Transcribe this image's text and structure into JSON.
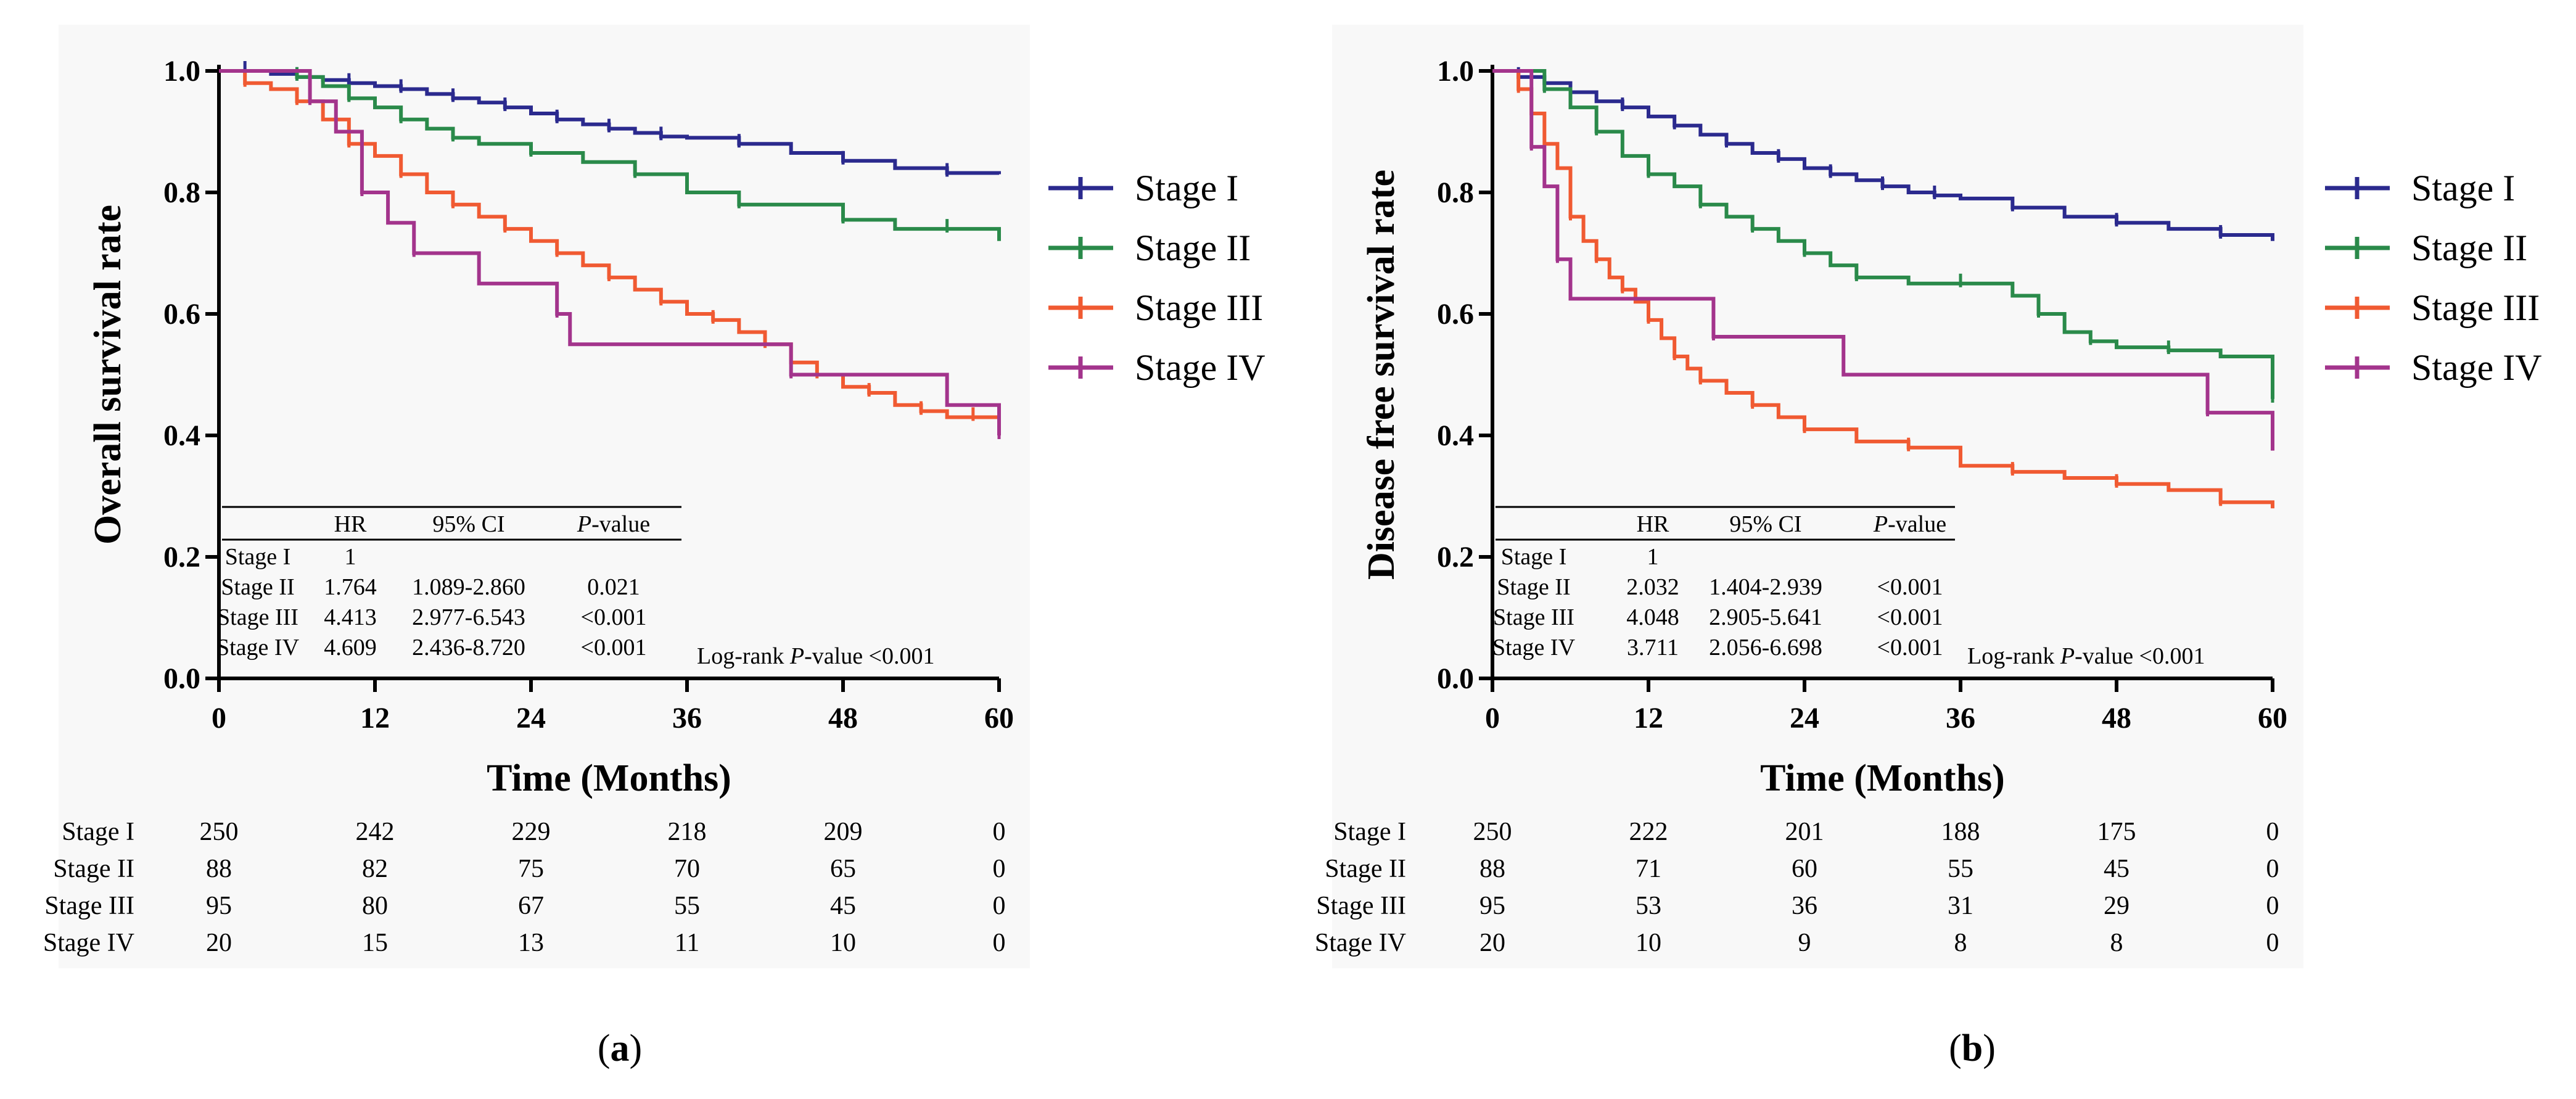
{
  "panels": [
    {
      "panel_label": "a",
      "chart_data": {
        "type": "line",
        "subtype": "kaplan-meier",
        "title": "",
        "xlabel": "Time (Months)",
        "ylabel": "Overall survival rate",
        "xlim": [
          0,
          60
        ],
        "ylim": [
          0,
          1
        ],
        "xticks": [
          0,
          12,
          24,
          36,
          48,
          60
        ],
        "xtick_labels": [
          "0",
          "12",
          "24",
          "36",
          "48",
          "60"
        ],
        "yticks": [
          0,
          0.2,
          0.4,
          0.6,
          0.8,
          1.0
        ],
        "ytick_labels": [
          "0.0",
          "0.2",
          "0.4",
          "0.6",
          "0.8",
          "1.0"
        ],
        "legend_position": "right",
        "series": [
          {
            "name": "Stage I",
            "color": "#2b2a8e",
            "x": [
              0,
              2,
              4,
              6,
              8,
              10,
              12,
              14,
              16,
              18,
              20,
              22,
              24,
              26,
              28,
              30,
              32,
              34,
              36,
              40,
              44,
              48,
              52,
              56,
              60
            ],
            "y": [
              1.0,
              1.0,
              0.995,
              0.99,
              0.985,
              0.98,
              0.975,
              0.97,
              0.962,
              0.955,
              0.948,
              0.94,
              0.93,
              0.92,
              0.912,
              0.905,
              0.898,
              0.892,
              0.89,
              0.88,
              0.865,
              0.852,
              0.84,
              0.832,
              0.83
            ]
          },
          {
            "name": "Stage II",
            "color": "#2a8a4a",
            "x": [
              0,
              6,
              8,
              10,
              12,
              14,
              16,
              18,
              20,
              24,
              28,
              32,
              36,
              40,
              44,
              48,
              52,
              56,
              60
            ],
            "y": [
              1.0,
              0.99,
              0.975,
              0.955,
              0.94,
              0.92,
              0.905,
              0.89,
              0.88,
              0.865,
              0.85,
              0.83,
              0.8,
              0.78,
              0.78,
              0.755,
              0.74,
              0.74,
              0.72
            ]
          },
          {
            "name": "Stage III",
            "color": "#f05a32",
            "x": [
              0,
              2,
              4,
              6,
              8,
              10,
              12,
              14,
              16,
              18,
              20,
              22,
              24,
              26,
              28,
              30,
              32,
              34,
              36,
              38,
              40,
              42,
              44,
              46,
              48,
              50,
              52,
              54,
              56,
              58,
              60
            ],
            "y": [
              1.0,
              0.98,
              0.97,
              0.95,
              0.92,
              0.88,
              0.86,
              0.83,
              0.8,
              0.78,
              0.76,
              0.74,
              0.72,
              0.7,
              0.68,
              0.66,
              0.64,
              0.62,
              0.6,
              0.59,
              0.57,
              0.55,
              0.52,
              0.5,
              0.48,
              0.47,
              0.45,
              0.44,
              0.43,
              0.43,
              0.41
            ]
          },
          {
            "name": "Stage IV",
            "color": "#a3348c",
            "x": [
              0,
              7,
              9,
              11,
              13,
              15,
              20,
              26,
              27,
              44,
              56,
              60
            ],
            "y": [
              1.0,
              0.95,
              0.9,
              0.8,
              0.75,
              0.7,
              0.65,
              0.6,
              0.55,
              0.5,
              0.45,
              0.4
            ]
          }
        ],
        "hr_table": {
          "headers": [
            "",
            "HR",
            "95% CI",
            "P-value"
          ],
          "rows": [
            [
              "Stage I",
              "1",
              "",
              ""
            ],
            [
              "Stage II",
              "1.764",
              "1.089-2.860",
              "0.021"
            ],
            [
              "Stage III",
              "4.413",
              "2.977-6.543",
              "<0.001"
            ],
            [
              "Stage IV",
              "4.609",
              "2.436-8.720",
              "<0.001"
            ]
          ],
          "logrank_prefix": "Log-rank ",
          "logrank_p": "P",
          "logrank_suffix": "-value <0.001"
        },
        "risk_table": {
          "rows": [
            {
              "label": "Stage I",
              "values": [
                "250",
                "242",
                "229",
                "218",
                "209",
                "0"
              ]
            },
            {
              "label": "Stage II",
              "values": [
                "88",
                "82",
                "75",
                "70",
                "65",
                "0"
              ]
            },
            {
              "label": "Stage III",
              "values": [
                "95",
                "80",
                "67",
                "55",
                "45",
                "0"
              ]
            },
            {
              "label": "Stage IV",
              "values": [
                "20",
                "15",
                "13",
                "11",
                "10",
                "0"
              ]
            }
          ]
        }
      }
    },
    {
      "panel_label": "b",
      "chart_data": {
        "type": "line",
        "subtype": "kaplan-meier",
        "title": "",
        "xlabel": "Time (Months)",
        "ylabel": "Disease free survival rate",
        "xlim": [
          0,
          60
        ],
        "ylim": [
          0,
          1
        ],
        "xticks": [
          0,
          12,
          24,
          36,
          48,
          60
        ],
        "xtick_labels": [
          "0",
          "12",
          "24",
          "36",
          "48",
          "60"
        ],
        "yticks": [
          0,
          0.2,
          0.4,
          0.6,
          0.8,
          1.0
        ],
        "ytick_labels": [
          "0.0",
          "0.2",
          "0.4",
          "0.6",
          "0.8",
          "1.0"
        ],
        "legend_position": "right",
        "series": [
          {
            "name": "Stage I",
            "color": "#2b2a8e",
            "x": [
              0,
              2,
              4,
              6,
              8,
              10,
              12,
              14,
              16,
              18,
              20,
              22,
              24,
              26,
              28,
              30,
              32,
              34,
              36,
              40,
              44,
              48,
              52,
              56,
              60
            ],
            "y": [
              1.0,
              0.99,
              0.98,
              0.965,
              0.95,
              0.94,
              0.925,
              0.91,
              0.895,
              0.88,
              0.865,
              0.855,
              0.84,
              0.83,
              0.82,
              0.81,
              0.8,
              0.795,
              0.79,
              0.775,
              0.76,
              0.75,
              0.74,
              0.73,
              0.72
            ]
          },
          {
            "name": "Stage II",
            "color": "#2a8a4a",
            "x": [
              0,
              4,
              6,
              8,
              10,
              12,
              14,
              16,
              18,
              20,
              22,
              24,
              26,
              28,
              32,
              36,
              40,
              42,
              44,
              46,
              48,
              52,
              56,
              60
            ],
            "y": [
              1.0,
              0.97,
              0.94,
              0.9,
              0.86,
              0.83,
              0.81,
              0.78,
              0.76,
              0.74,
              0.72,
              0.7,
              0.68,
              0.66,
              0.65,
              0.65,
              0.63,
              0.6,
              0.57,
              0.555,
              0.545,
              0.54,
              0.53,
              0.46
            ]
          },
          {
            "name": "Stage III",
            "color": "#f05a32",
            "x": [
              0,
              2,
              3,
              4,
              5,
              6,
              7,
              8,
              9,
              10,
              11,
              12,
              13,
              14,
              15,
              16,
              18,
              20,
              22,
              24,
              28,
              32,
              36,
              40,
              44,
              48,
              52,
              56,
              60
            ],
            "y": [
              1.0,
              0.97,
              0.93,
              0.88,
              0.84,
              0.76,
              0.72,
              0.69,
              0.66,
              0.64,
              0.62,
              0.59,
              0.56,
              0.53,
              0.51,
              0.49,
              0.47,
              0.45,
              0.43,
              0.41,
              0.39,
              0.38,
              0.35,
              0.34,
              0.33,
              0.32,
              0.31,
              0.29,
              0.28
            ]
          },
          {
            "name": "Stage IV",
            "color": "#a3348c",
            "x": [
              0,
              3,
              4,
              5,
              6,
              17,
              27,
              55,
              60
            ],
            "y": [
              1.0,
              0.875,
              0.81,
              0.69,
              0.625,
              0.5625,
              0.5,
              0.4375,
              0.375
            ]
          }
        ],
        "hr_table": {
          "headers": [
            "",
            "HR",
            "95% CI",
            "P-value"
          ],
          "rows": [
            [
              "Stage I",
              "1",
              "",
              ""
            ],
            [
              "Stage II",
              "2.032",
              "1.404-2.939",
              "<0.001"
            ],
            [
              "Stage III",
              "4.048",
              "2.905-5.641",
              "<0.001"
            ],
            [
              "Stage IV",
              "3.711",
              "2.056-6.698",
              "<0.001"
            ]
          ],
          "logrank_prefix": "Log-rank ",
          "logrank_p": "P",
          "logrank_suffix": "-value <0.001"
        },
        "risk_table": {
          "rows": [
            {
              "label": "Stage I",
              "values": [
                "250",
                "222",
                "201",
                "188",
                "175",
                "0"
              ]
            },
            {
              "label": "Stage II",
              "values": [
                "88",
                "71",
                "60",
                "55",
                "45",
                "0"
              ]
            },
            {
              "label": "Stage III",
              "values": [
                "95",
                "53",
                "36",
                "31",
                "29",
                "0"
              ]
            },
            {
              "label": "Stage IV",
              "values": [
                "20",
                "10",
                "9",
                "8",
                "8",
                "0"
              ]
            }
          ]
        }
      }
    }
  ]
}
